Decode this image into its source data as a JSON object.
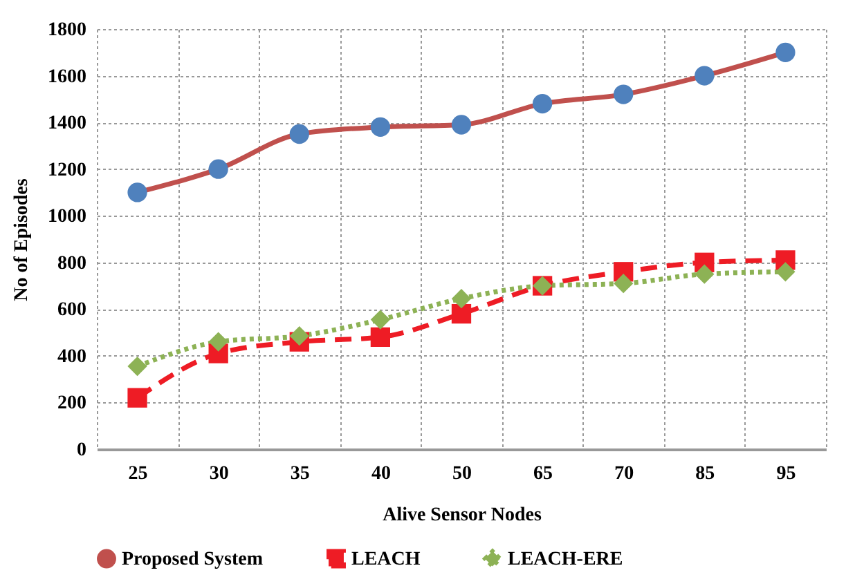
{
  "chart_data": {
    "type": "line",
    "xlabel": "Alive Sensor Nodes",
    "ylabel": "No of Episodes",
    "categories": [
      "25",
      "30",
      "35",
      "40",
      "50",
      "65",
      "70",
      "85",
      "95"
    ],
    "series": [
      {
        "name": "Proposed System",
        "color": "#c0504d",
        "colors": [
          "#4f81bd",
          "#4f81bd",
          "#4f81bd",
          "#4f81bd",
          "#4f81bd",
          "#4f81bd",
          "#4f81bd",
          "#4f81bd",
          "#4f81bd"
        ],
        "marker": "circle",
        "line_style": "solid",
        "values": [
          1100,
          1200,
          1350,
          1380,
          1390,
          1480,
          1520,
          1600,
          1700
        ]
      },
      {
        "name": "LEACH",
        "color": "#ee1c25",
        "marker": "square",
        "line_style": "dashed",
        "values": [
          220,
          410,
          460,
          480,
          580,
          700,
          760,
          800,
          810
        ]
      },
      {
        "name": "LEACH-ERE",
        "color": "#8db255",
        "marker": "diamond",
        "line_style": "dotted",
        "values": [
          355,
          460,
          485,
          555,
          645,
          700,
          710,
          750,
          760
        ]
      }
    ],
    "ylim": [
      0,
      1800
    ],
    "yticks": [
      0,
      200,
      400,
      600,
      800,
      1000,
      1200,
      1400,
      1600,
      1800
    ],
    "grid": true,
    "legend": "bottom"
  }
}
